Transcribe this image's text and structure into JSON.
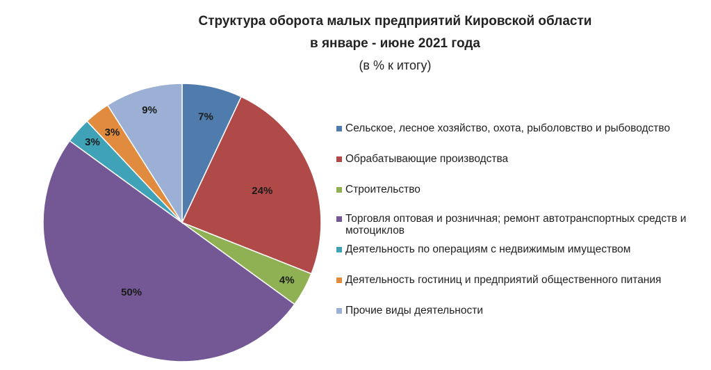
{
  "header": {
    "title_line1": "Структура оборота малых предприятий Кировской области",
    "title_line2": "в январе - июне 2021 года",
    "subtitle": "(в % к итогу)"
  },
  "chart_data": {
    "type": "pie",
    "title": "Структура оборота малых предприятий Кировской области в январе - июне 2021 года",
    "subtitle": "(в % к итогу)",
    "legend_position": "right",
    "start_angle": "12 o'clock, clockwise",
    "slices": [
      {
        "label": "Сельское, лесное хозяйство, охота, рыболовство и рыбоводство",
        "value": 7,
        "display": "7%",
        "color": "#4f7cad"
      },
      {
        "label": "Обрабатывающие производства",
        "value": 24,
        "display": "24%",
        "color": "#b04a48"
      },
      {
        "label": "Строительство",
        "value": 4,
        "display": "4%",
        "color": "#8fb153"
      },
      {
        "label": "Торговля оптовая и розничная; ремонт автотранспортных средств и мотоциклов",
        "value": 50,
        "display": "50%",
        "color": "#735895"
      },
      {
        "label": "Деятельность по операциям с недвижимым имуществом",
        "value": 3,
        "display": "3%",
        "color": "#3fa2b7"
      },
      {
        "label": "Деятельность гостиниц и предприятий общественного питания",
        "value": 3,
        "display": "3%",
        "color": "#e08b3e"
      },
      {
        "label": "Прочие виды деятельности",
        "value": 9,
        "display": "9%",
        "color": "#9bb0d4"
      }
    ]
  }
}
